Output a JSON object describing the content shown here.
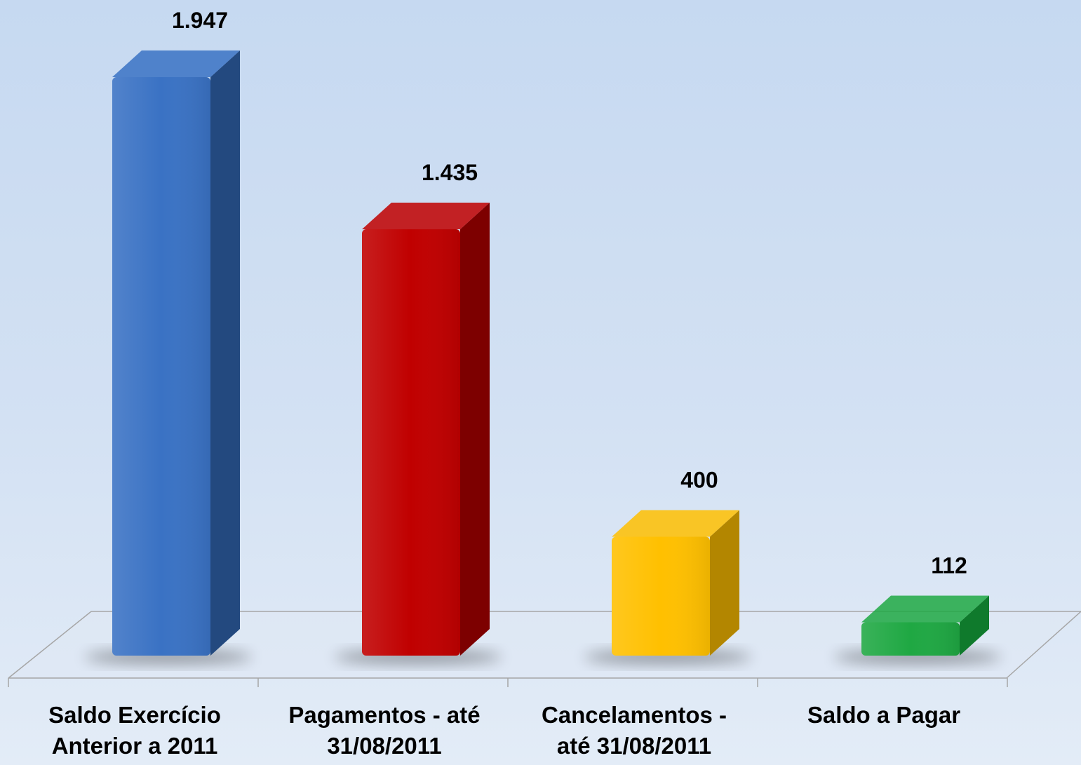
{
  "chart_data": {
    "type": "bar3d",
    "categories": [
      "Saldo Exercício\nAnterior a 2011",
      "Pagamentos - até\n31/08/2011",
      "Cancelamentos -\naté 31/08/2011",
      "Saldo a Pagar"
    ],
    "values": [
      1947,
      1435,
      400,
      112
    ],
    "value_labels": [
      "1.947",
      "1.435",
      "400",
      "112"
    ],
    "colors": [
      "#3a72c4",
      "#c00000",
      "#ffc000",
      "#1fa843"
    ],
    "side_colors": [
      "#23497f",
      "#7d0000",
      "#b38600",
      "#0f7a2c"
    ]
  }
}
